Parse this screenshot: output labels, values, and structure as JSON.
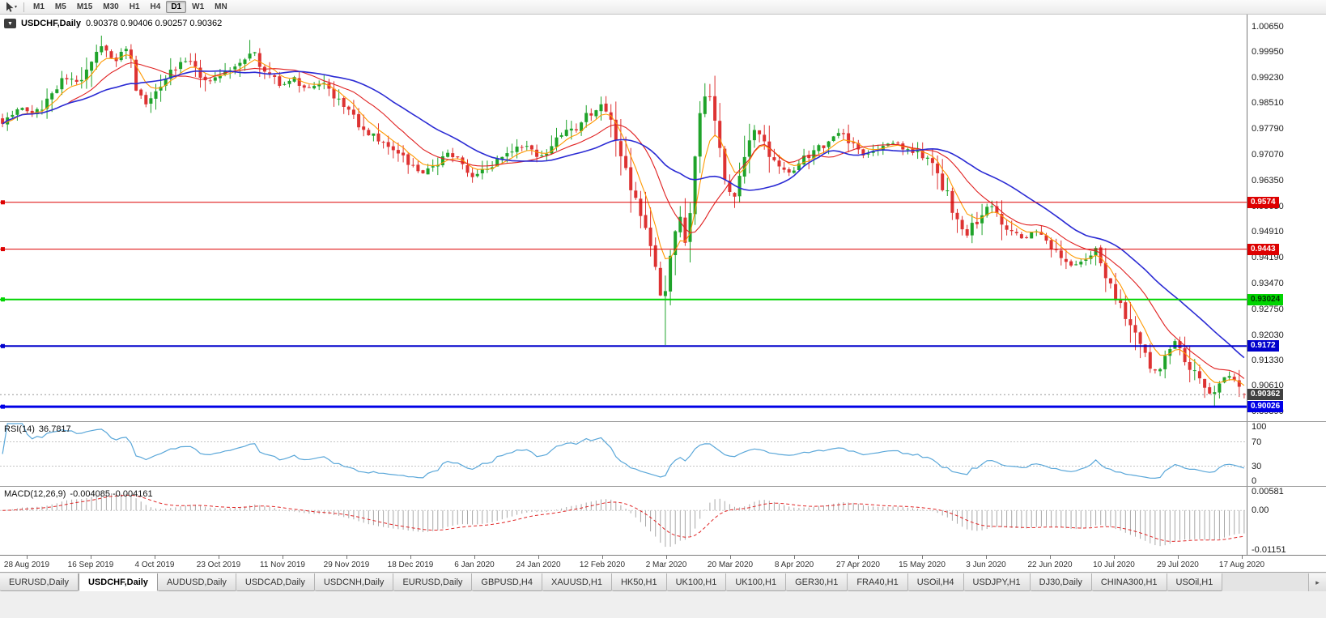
{
  "toolbar": {
    "timeframes": [
      "M1",
      "M5",
      "M15",
      "M30",
      "H1",
      "H4",
      "D1",
      "W1",
      "MN"
    ],
    "active_timeframe": "D1"
  },
  "icons": {
    "cursor_tool": "cursor-arrow-icon",
    "dropdown_caret": "▾",
    "chart_badge_arrow": "▼",
    "tab_scroll_right": "▸"
  },
  "chart_header": {
    "symbol": "USDCHF,Daily",
    "ohlc": "0.90378 0.90406 0.90257 0.90362"
  },
  "main_axis": {
    "labels": [
      "1.00650",
      "0.99950",
      "0.99230",
      "0.98510",
      "0.97790",
      "0.97070",
      "0.96350",
      "0.95630",
      "0.94910",
      "0.94190",
      "0.93470",
      "0.92750",
      "0.92030",
      "0.91330",
      "0.90610",
      "0.89890"
    ]
  },
  "hlines": [
    {
      "price": 0.9574,
      "label": "0.9574",
      "color": "#dd0000",
      "text_color": "#ffffff",
      "width": 1
    },
    {
      "price": 0.9443,
      "label": "0.9443",
      "color": "#dd0000",
      "text_color": "#ffffff",
      "width": 1
    },
    {
      "price": 0.93024,
      "label": "0.93024",
      "color": "#00d400",
      "text_color": "#003300",
      "width": 2
    },
    {
      "price": 0.9172,
      "label": "0.9172",
      "color": "#0000cc",
      "text_color": "#ffffff",
      "width": 2
    },
    {
      "price": 0.90026,
      "label": "0.90026",
      "color": "#0000e6",
      "text_color": "#ffffff",
      "width": 3
    }
  ],
  "current_price": {
    "value": 0.90362,
    "label": "0.90362",
    "bg": "#404040",
    "text_color": "#ffffff"
  },
  "rsi": {
    "name": "RSI(14)",
    "value_text": "36.7817",
    "period": 14,
    "color": "#5aa7d9",
    "levels": [
      {
        "v": 100,
        "label": "100"
      },
      {
        "v": 70,
        "label": "70"
      },
      {
        "v": 30,
        "label": "30"
      },
      {
        "v": 0,
        "label": "0"
      }
    ],
    "dotted_levels": [
      70,
      30
    ]
  },
  "macd": {
    "name": "MACD(12,26,9)",
    "values_text": "-0.004085 -0.004161",
    "fast": 12,
    "slow": 26,
    "signal": 9,
    "max": 0.00581,
    "min": -0.01151,
    "axis_labels": [
      {
        "v": 0.00581,
        "label": "0.00581"
      },
      {
        "v": 0,
        "label": "0.00"
      },
      {
        "v": -0.01151,
        "label": "-0.01151"
      }
    ],
    "hist_color": "#a8a8a8",
    "signal_color": "#e02525"
  },
  "date_axis": {
    "labels": [
      "28 Aug 2019",
      "16 Sep 2019",
      "4 Oct 2019",
      "23 Oct 2019",
      "11 Nov 2019",
      "29 Nov 2019",
      "18 Dec 2019",
      "6 Jan 2020",
      "24 Jan 2020",
      "12 Feb 2020",
      "2 Mar 2020",
      "20 Mar 2020",
      "8 Apr 2020",
      "27 Apr 2020",
      "15 May 2020",
      "3 Jun 2020",
      "22 Jun 2020",
      "10 Jul 2020",
      "29 Jul 2020",
      "17 Aug 2020"
    ]
  },
  "tabs": {
    "items": [
      {
        "label": "EURUSD,Daily"
      },
      {
        "label": "USDCHF,Daily",
        "active": true
      },
      {
        "label": "AUDUSD,Daily"
      },
      {
        "label": "USDCAD,Daily"
      },
      {
        "label": "USDCNH,Daily"
      },
      {
        "label": "EURUSD,Daily"
      },
      {
        "label": "GBPUSD,H4"
      },
      {
        "label": "XAUUSD,H1"
      },
      {
        "label": "HK50,H1"
      },
      {
        "label": "UK100,H1"
      },
      {
        "label": "UK100,H1"
      },
      {
        "label": "GER30,H1"
      },
      {
        "label": "FRA40,H1"
      },
      {
        "label": "USOil,H4"
      },
      {
        "label": "USDJPY,H1"
      },
      {
        "label": "DJ30,Daily"
      },
      {
        "label": "CHINA300,H1"
      },
      {
        "label": "USOil,H1"
      }
    ]
  },
  "chart_data": {
    "type": "candlestick",
    "symbol": "USDCHF",
    "timeframe": "Daily",
    "candle_count": 252,
    "seed": 7,
    "price_scale": {
      "max": 1.0099,
      "min": 0.8962
    },
    "colors": {
      "up": "#1fa32a",
      "down": "#dd3232"
    },
    "moving_averages": [
      {
        "period": 6,
        "type": "ema",
        "color": "#ff9900",
        "width": 1.1
      },
      {
        "period": 14,
        "type": "sma",
        "color": "#e02020",
        "width": 1.1
      },
      {
        "period": 28,
        "type": "sma",
        "color": "#2b2bd4",
        "width": 1.6
      }
    ],
    "last_candle": {
      "o": 0.90378,
      "h": 0.90406,
      "l": 0.90257,
      "c": 0.90362
    },
    "price_path": [
      [
        0.0,
        0.98
      ],
      [
        0.013,
        0.984
      ],
      [
        0.026,
        0.9818
      ],
      [
        0.039,
        0.988
      ],
      [
        0.051,
        0.9925
      ],
      [
        0.062,
        0.99
      ],
      [
        0.071,
        0.9975
      ],
      [
        0.081,
        1.001
      ],
      [
        0.091,
        0.996
      ],
      [
        0.097,
        1.0
      ],
      [
        0.103,
        0.9985
      ],
      [
        0.11,
        0.986
      ],
      [
        0.117,
        0.9845
      ],
      [
        0.13,
        0.992
      ],
      [
        0.14,
        0.995
      ],
      [
        0.154,
        0.9975
      ],
      [
        0.162,
        0.9905
      ],
      [
        0.172,
        0.992
      ],
      [
        0.182,
        0.9945
      ],
      [
        0.195,
        0.9965
      ],
      [
        0.201,
        1.0005
      ],
      [
        0.206,
        0.997
      ],
      [
        0.214,
        0.9935
      ],
      [
        0.224,
        0.99
      ],
      [
        0.234,
        0.9925
      ],
      [
        0.244,
        0.989
      ],
      [
        0.257,
        0.991
      ],
      [
        0.266,
        0.9875
      ],
      [
        0.276,
        0.984
      ],
      [
        0.286,
        0.98
      ],
      [
        0.295,
        0.977
      ],
      [
        0.308,
        0.9735
      ],
      [
        0.318,
        0.971
      ],
      [
        0.328,
        0.968
      ],
      [
        0.338,
        0.9655
      ],
      [
        0.351,
        0.9685
      ],
      [
        0.359,
        0.9715
      ],
      [
        0.37,
        0.9685
      ],
      [
        0.38,
        0.9645
      ],
      [
        0.39,
        0.967
      ],
      [
        0.399,
        0.9695
      ],
      [
        0.41,
        0.9715
      ],
      [
        0.422,
        0.9735
      ],
      [
        0.432,
        0.97
      ],
      [
        0.442,
        0.9725
      ],
      [
        0.451,
        0.977
      ],
      [
        0.462,
        0.9785
      ],
      [
        0.471,
        0.9815
      ],
      [
        0.481,
        0.9845
      ],
      [
        0.49,
        0.979
      ],
      [
        0.5,
        0.9695
      ],
      [
        0.506,
        0.962
      ],
      [
        0.513,
        0.9565
      ],
      [
        0.519,
        0.948
      ],
      [
        0.526,
        0.937
      ],
      [
        0.532,
        0.9295
      ],
      [
        0.539,
        0.942
      ],
      [
        0.545,
        0.9525
      ],
      [
        0.552,
        0.9465
      ],
      [
        0.558,
        0.972
      ],
      [
        0.564,
        0.9855
      ],
      [
        0.568,
        0.99
      ],
      [
        0.575,
        0.9775
      ],
      [
        0.581,
        0.9625
      ],
      [
        0.588,
        0.958
      ],
      [
        0.594,
        0.9665
      ],
      [
        0.601,
        0.9745
      ],
      [
        0.607,
        0.978
      ],
      [
        0.616,
        0.9715
      ],
      [
        0.623,
        0.9675
      ],
      [
        0.633,
        0.9655
      ],
      [
        0.643,
        0.9685
      ],
      [
        0.652,
        0.9715
      ],
      [
        0.667,
        0.9745
      ],
      [
        0.675,
        0.977
      ],
      [
        0.685,
        0.9735
      ],
      [
        0.695,
        0.9705
      ],
      [
        0.704,
        0.9725
      ],
      [
        0.718,
        0.9745
      ],
      [
        0.727,
        0.9725
      ],
      [
        0.737,
        0.971
      ],
      [
        0.747,
        0.9685
      ],
      [
        0.756,
        0.9625
      ],
      [
        0.769,
        0.9525
      ],
      [
        0.776,
        0.948
      ],
      [
        0.786,
        0.9535
      ],
      [
        0.795,
        0.9575
      ],
      [
        0.805,
        0.951
      ],
      [
        0.821,
        0.947
      ],
      [
        0.831,
        0.9495
      ],
      [
        0.841,
        0.9465
      ],
      [
        0.851,
        0.9425
      ],
      [
        0.86,
        0.9395
      ],
      [
        0.872,
        0.941
      ],
      [
        0.88,
        0.9445
      ],
      [
        0.886,
        0.939
      ],
      [
        0.896,
        0.9325
      ],
      [
        0.906,
        0.925
      ],
      [
        0.916,
        0.9185
      ],
      [
        0.923,
        0.9125
      ],
      [
        0.932,
        0.9095
      ],
      [
        0.938,
        0.9155
      ],
      [
        0.944,
        0.9185
      ],
      [
        0.951,
        0.9145
      ],
      [
        0.961,
        0.9095
      ],
      [
        0.968,
        0.9055
      ],
      [
        0.975,
        0.9035
      ],
      [
        0.981,
        0.9075
      ],
      [
        0.987,
        0.9095
      ],
      [
        0.994,
        0.906
      ],
      [
        1.0,
        0.9036
      ]
    ],
    "wick_overrides": [
      {
        "t": 0.081,
        "high": 1.004
      },
      {
        "t": 0.201,
        "high": 1.0028
      },
      {
        "t": 0.532,
        "low": 0.9175
      },
      {
        "t": 0.568,
        "high": 0.9905
      },
      {
        "t": 0.975,
        "low": 0.9002
      }
    ]
  }
}
